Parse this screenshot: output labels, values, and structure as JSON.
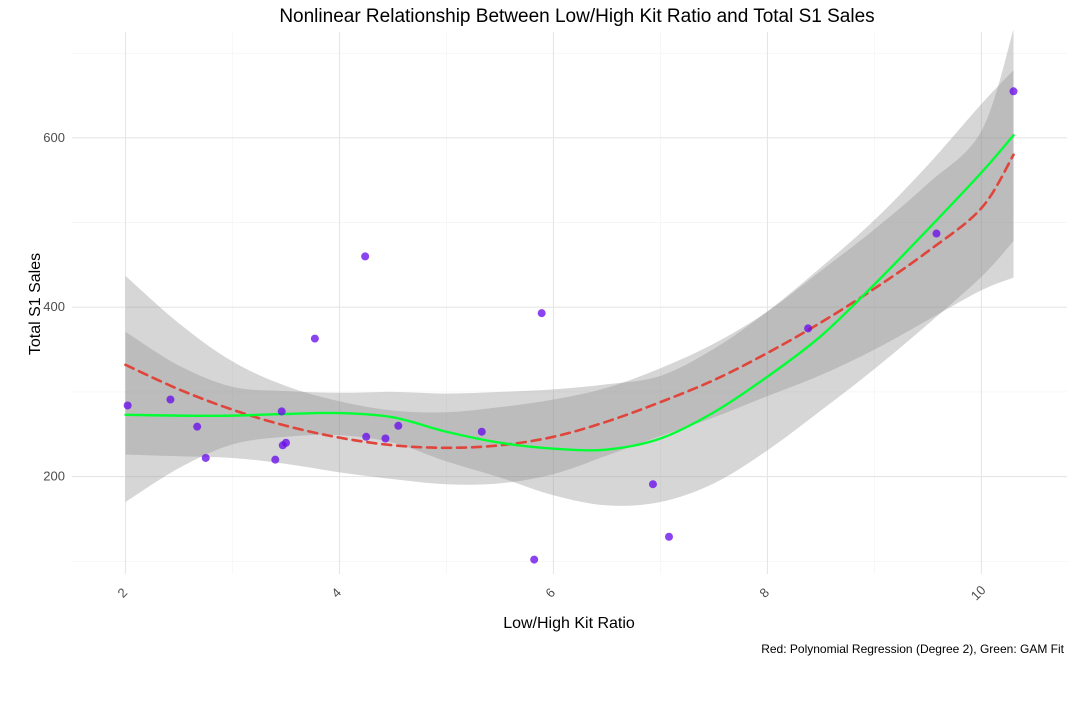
{
  "chart_data": {
    "type": "scatter",
    "title": "Nonlinear Relationship Between Low/High Kit Ratio and Total S1 Sales",
    "xlabel": "Low/High Kit Ratio",
    "ylabel": "Total S1 Sales",
    "caption": "Red: Polynomial Regression (Degree 2), Green: GAM Fit",
    "xlim": [
      1.5,
      10.8
    ],
    "ylim": [
      85,
      725
    ],
    "x_ticks": [
      2,
      4,
      6,
      8,
      10
    ],
    "y_ticks": [
      200,
      400,
      600
    ],
    "grid": true,
    "legend": "none",
    "colors": {
      "points": "#6a0dea",
      "polynomial": "#e0443a",
      "gam": "#00ff33",
      "band": "#8c8c8c"
    },
    "points": [
      {
        "x": 2.02,
        "y": 284
      },
      {
        "x": 2.42,
        "y": 291
      },
      {
        "x": 2.67,
        "y": 259
      },
      {
        "x": 2.75,
        "y": 222
      },
      {
        "x": 3.4,
        "y": 220
      },
      {
        "x": 3.46,
        "y": 277
      },
      {
        "x": 3.47,
        "y": 237
      },
      {
        "x": 3.5,
        "y": 240
      },
      {
        "x": 3.77,
        "y": 363
      },
      {
        "x": 4.24,
        "y": 460
      },
      {
        "x": 4.25,
        "y": 247
      },
      {
        "x": 4.43,
        "y": 245
      },
      {
        "x": 4.55,
        "y": 260
      },
      {
        "x": 5.33,
        "y": 253
      },
      {
        "x": 5.82,
        "y": 102
      },
      {
        "x": 5.89,
        "y": 393
      },
      {
        "x": 6.93,
        "y": 191
      },
      {
        "x": 7.08,
        "y": 129
      },
      {
        "x": 8.38,
        "y": 375
      },
      {
        "x": 9.58,
        "y": 487
      },
      {
        "x": 10.3,
        "y": 655
      }
    ],
    "series": [
      {
        "fit": "polynomial",
        "x": [
          2.0,
          2.5,
          3.0,
          3.5,
          4.0,
          4.5,
          5.0,
          5.5,
          6.0,
          6.5,
          7.0,
          7.5,
          8.0,
          8.5,
          9.0,
          9.5,
          10.0,
          10.3
        ],
        "y": [
          332,
          303,
          279,
          260,
          246,
          237,
          234,
          237,
          247,
          265,
          288,
          314,
          346,
          382,
          422,
          466,
          517,
          580
        ],
        "lower": [
          226,
          224,
          222,
          215,
          205,
          197,
          191,
          192,
          203,
          225,
          248,
          270,
          295,
          320,
          350,
          385,
          420,
          435
        ],
        "upper": [
          437,
          381,
          336,
          307,
          289,
          278,
          276,
          282,
          291,
          305,
          328,
          357,
          395,
          443,
          492,
          546,
          608,
          728
        ]
      },
      {
        "fit": "gam",
        "x": [
          2.0,
          2.5,
          3.0,
          3.5,
          4.0,
          4.5,
          5.0,
          5.5,
          6.0,
          6.5,
          7.0,
          7.5,
          8.0,
          8.5,
          9.0,
          9.5,
          10.0,
          10.3
        ],
        "y": [
          273,
          272,
          272,
          274,
          275,
          270,
          253,
          240,
          233,
          232,
          245,
          276,
          318,
          366,
          427,
          492,
          559,
          603
        ],
        "lower": [
          170,
          210,
          238,
          247,
          249,
          240,
          218,
          199,
          178,
          166,
          170,
          192,
          231,
          278,
          327,
          380,
          436,
          478
        ],
        "upper": [
          371,
          331,
          306,
          301,
          299,
          300,
          298,
          300,
          303,
          309,
          319,
          351,
          395,
          447,
          503,
          568,
          640,
          680
        ]
      }
    ]
  }
}
